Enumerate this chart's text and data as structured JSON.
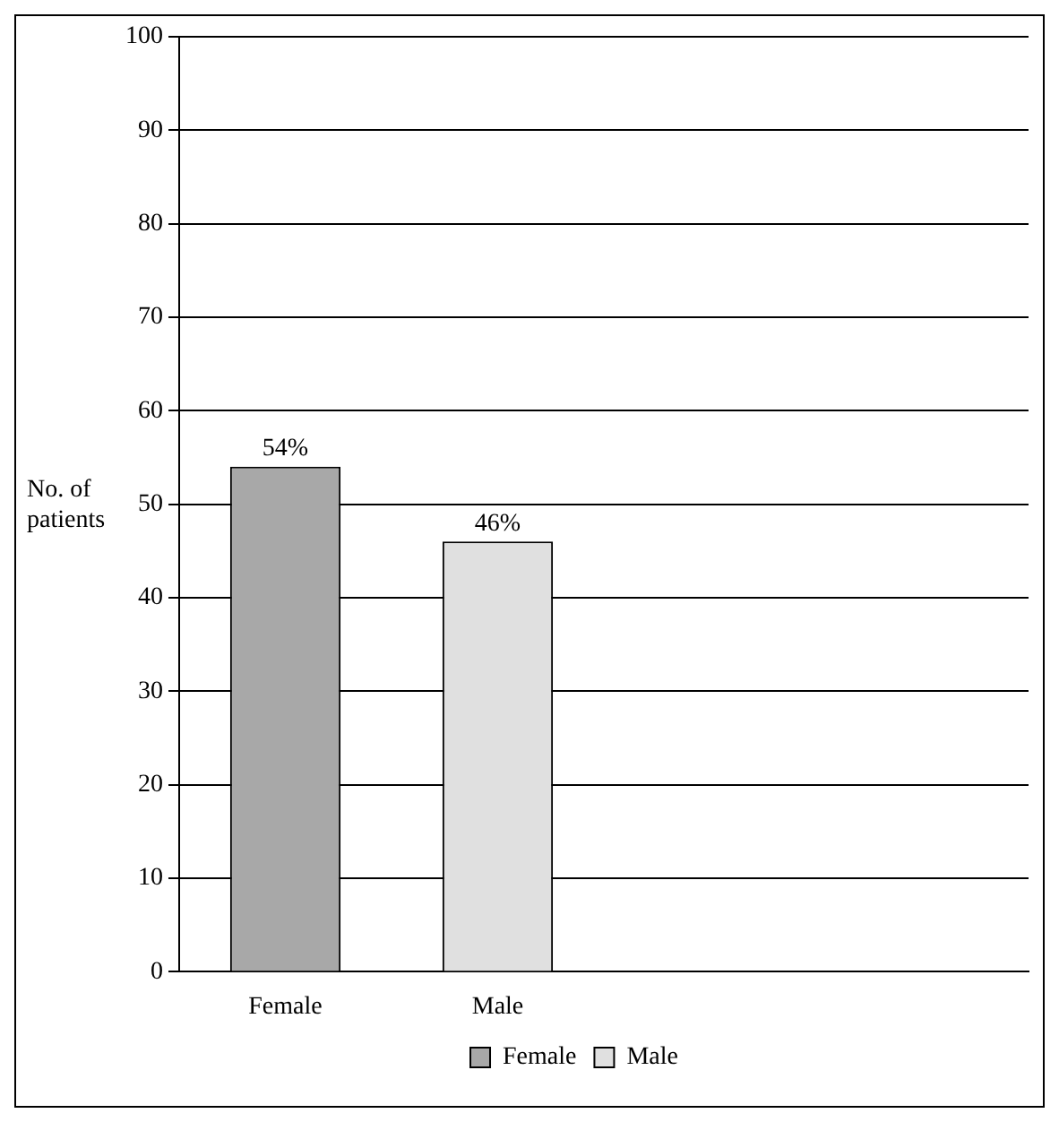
{
  "chart_data": {
    "type": "bar",
    "ylabel": "No. of patients",
    "categories": [
      "Female",
      "Male",
      null,
      null
    ],
    "series": [
      {
        "name": "Female",
        "color": "#a8a8a8",
        "values": [
          54,
          null,
          null,
          null
        ],
        "value_labels": [
          "54%",
          null,
          null,
          null
        ]
      },
      {
        "name": "Male",
        "color": "#e0e0e0",
        "values": [
          null,
          46,
          null,
          null
        ],
        "value_labels": [
          null,
          "46%",
          null,
          null
        ]
      }
    ],
    "ylim": [
      0,
      100
    ],
    "yticks": [
      0,
      10,
      20,
      30,
      40,
      50,
      60,
      70,
      80,
      90,
      100
    ],
    "grid": "y",
    "legend": "bottom"
  }
}
